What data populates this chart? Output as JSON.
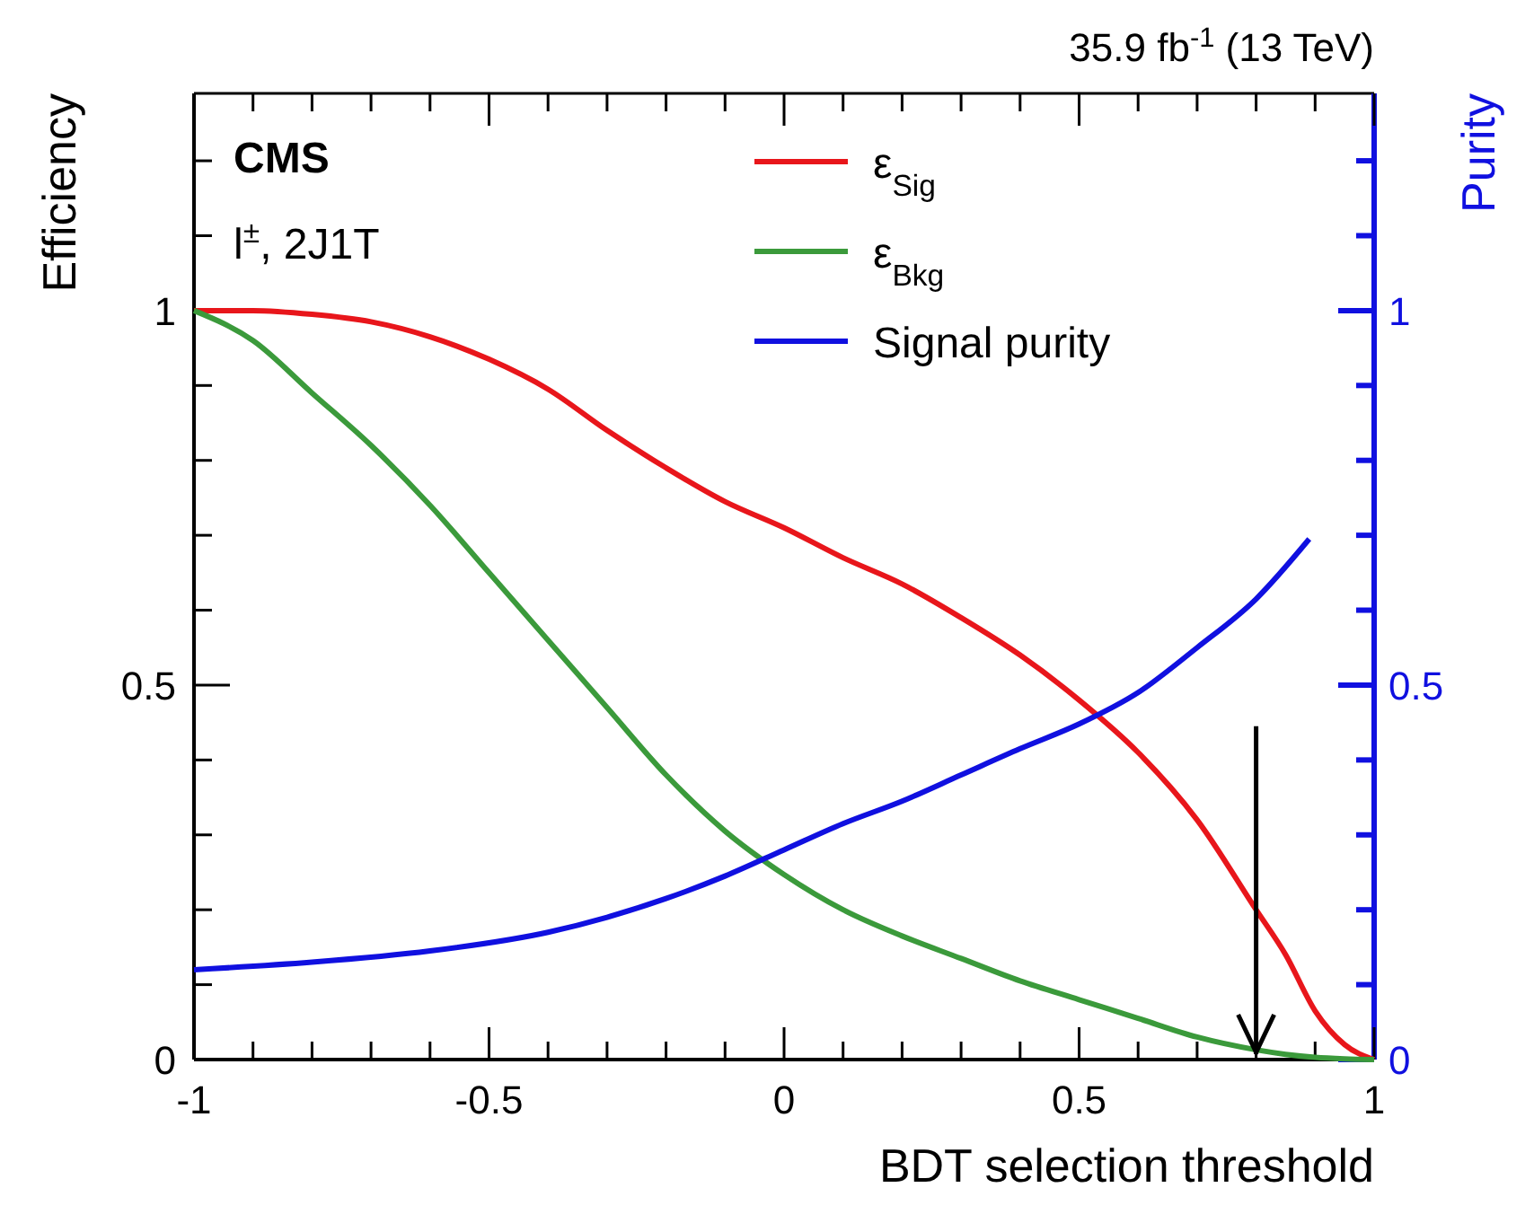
{
  "chart_data": {
    "type": "line",
    "title": "35.9 fb$^{-1}$ (13 TeV)",
    "xlabel": "BDT selection threshold",
    "ylabel": "Efficiency",
    "y2label": "Purity",
    "annotations": [
      "CMS",
      "l$^{±}$, 2J1T"
    ],
    "x": [
      -1,
      -0.9,
      -0.8,
      -0.7,
      -0.6,
      -0.5,
      -0.4,
      -0.3,
      -0.2,
      -0.1,
      0,
      0.1,
      0.2,
      0.3,
      0.4,
      0.5,
      0.6,
      0.7,
      0.8,
      0.85,
      0.9,
      0.95,
      1
    ],
    "series": [
      {
        "name": "ε$_{Sig}$",
        "color": "#e8161b",
        "values": [
          1.0,
          1.0,
          0.995,
          0.985,
          0.965,
          0.935,
          0.895,
          0.84,
          0.79,
          0.745,
          0.71,
          0.67,
          0.635,
          0.59,
          0.54,
          0.48,
          0.41,
          0.32,
          0.2,
          0.14,
          0.065,
          0.02,
          0
        ]
      },
      {
        "name": "ε$_{Bkg}$",
        "color": "#3b9a3b",
        "values": [
          1.0,
          0.96,
          0.89,
          0.82,
          0.74,
          0.65,
          0.56,
          0.47,
          0.38,
          0.305,
          0.247,
          0.2,
          0.165,
          0.135,
          0.105,
          0.08,
          0.055,
          0.03,
          0.013,
          0.007,
          0.003,
          0.001,
          0
        ]
      },
      {
        "name": "Signal purity",
        "color": "#1010e0",
        "axis": "y2",
        "x": [
          -1,
          -0.8,
          -0.6,
          -0.4,
          -0.3,
          -0.2,
          -0.1,
          0,
          0.1,
          0.2,
          0.3,
          0.4,
          0.5,
          0.6,
          0.7,
          0.8,
          0.89
        ],
        "values": [
          0.12,
          0.13,
          0.145,
          0.17,
          0.19,
          0.215,
          0.245,
          0.28,
          0.315,
          0.345,
          0.38,
          0.415,
          0.448,
          0.49,
          0.55,
          0.615,
          0.695
        ]
      }
    ],
    "xlim": [
      -1,
      1
    ],
    "xticks": [
      -1,
      {
        "value": -0.9,
        "label": null
      },
      {
        "value": -0.8,
        "label": null
      },
      {
        "value": -0.7,
        "label": null
      },
      {
        "value": -0.6,
        "label": null
      },
      -0.5,
      {
        "value": -0.4,
        "label": null
      },
      {
        "value": -0.3,
        "label": null
      },
      {
        "value": -0.2,
        "label": null
      },
      {
        "value": -0.1,
        "label": null
      },
      0,
      {
        "value": 0.1,
        "label": null
      },
      {
        "value": 0.2,
        "label": null
      },
      {
        "value": 0.3,
        "label": null
      },
      {
        "value": 0.4,
        "label": null
      },
      0.5,
      {
        "value": 0.6,
        "label": null
      },
      {
        "value": 0.7,
        "label": null
      },
      {
        "value": 0.8,
        "label": null
      },
      {
        "value": 0.9,
        "label": null
      },
      1
    ],
    "ylim": [
      0,
      1.29
    ],
    "yticks": [
      0,
      {
        "value": 0.1,
        "label": null
      },
      {
        "value": 0.2,
        "label": null
      },
      {
        "value": 0.3,
        "label": null
      },
      {
        "value": 0.4,
        "label": null
      },
      0.5,
      {
        "value": 0.6,
        "label": null
      },
      {
        "value": 0.7,
        "label": null
      },
      {
        "value": 0.8,
        "label": null
      },
      {
        "value": 0.9,
        "label": null
      },
      1,
      {
        "value": 1.1,
        "label": null
      },
      {
        "value": 1.2,
        "label": null
      }
    ],
    "y2lim": [
      0,
      1.29
    ],
    "y2ticks": [
      0,
      {
        "value": 0.1,
        "label": null
      },
      {
        "value": 0.2,
        "label": null
      },
      {
        "value": 0.3,
        "label": null
      },
      {
        "value": 0.4,
        "label": null
      },
      0.5,
      {
        "value": 0.6,
        "label": null
      },
      {
        "value": 0.7,
        "label": null
      },
      {
        "value": 0.8,
        "label": null
      },
      {
        "value": 0.9,
        "label": null
      },
      1,
      {
        "value": 1.1,
        "label": null
      },
      {
        "value": 1.2,
        "label": null
      }
    ],
    "ref_lines": [
      {
        "axis": "x",
        "value": 0.8,
        "color": "#000000"
      }
    ],
    "legend": "top",
    "grid": false,
    "marker": "none",
    "line_style": "solid"
  }
}
